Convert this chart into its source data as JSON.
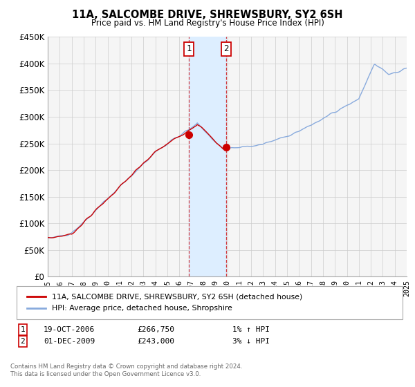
{
  "title": "11A, SALCOMBE DRIVE, SHREWSBURY, SY2 6SH",
  "subtitle": "Price paid vs. HM Land Registry's House Price Index (HPI)",
  "ylim": [
    0,
    450000
  ],
  "yticks": [
    0,
    50000,
    100000,
    150000,
    200000,
    250000,
    300000,
    350000,
    400000,
    450000
  ],
  "ytick_labels": [
    "£0",
    "£50K",
    "£100K",
    "£150K",
    "£200K",
    "£250K",
    "£300K",
    "£350K",
    "£400K",
    "£450K"
  ],
  "sale1_date_num": 2006.79,
  "sale1_price": 266750,
  "sale1_label": "1",
  "sale1_date_str": "19-OCT-2006",
  "sale1_price_str": "£266,750",
  "sale1_hpi_str": "1% ↑ HPI",
  "sale2_date_num": 2009.92,
  "sale2_price": 243000,
  "sale2_label": "2",
  "sale2_date_str": "01-DEC-2009",
  "sale2_price_str": "£243,000",
  "sale2_hpi_str": "3% ↓ HPI",
  "hpi_color": "#88aadd",
  "sale_color": "#cc0000",
  "shaded_color": "#ddeeff",
  "grid_color": "#cccccc",
  "background_color": "#f5f5f5",
  "legend_label_sale": "11A, SALCOMBE DRIVE, SHREWSBURY, SY2 6SH (detached house)",
  "legend_label_hpi": "HPI: Average price, detached house, Shropshire",
  "footer1": "Contains HM Land Registry data © Crown copyright and database right 2024.",
  "footer2": "This data is licensed under the Open Government Licence v3.0."
}
